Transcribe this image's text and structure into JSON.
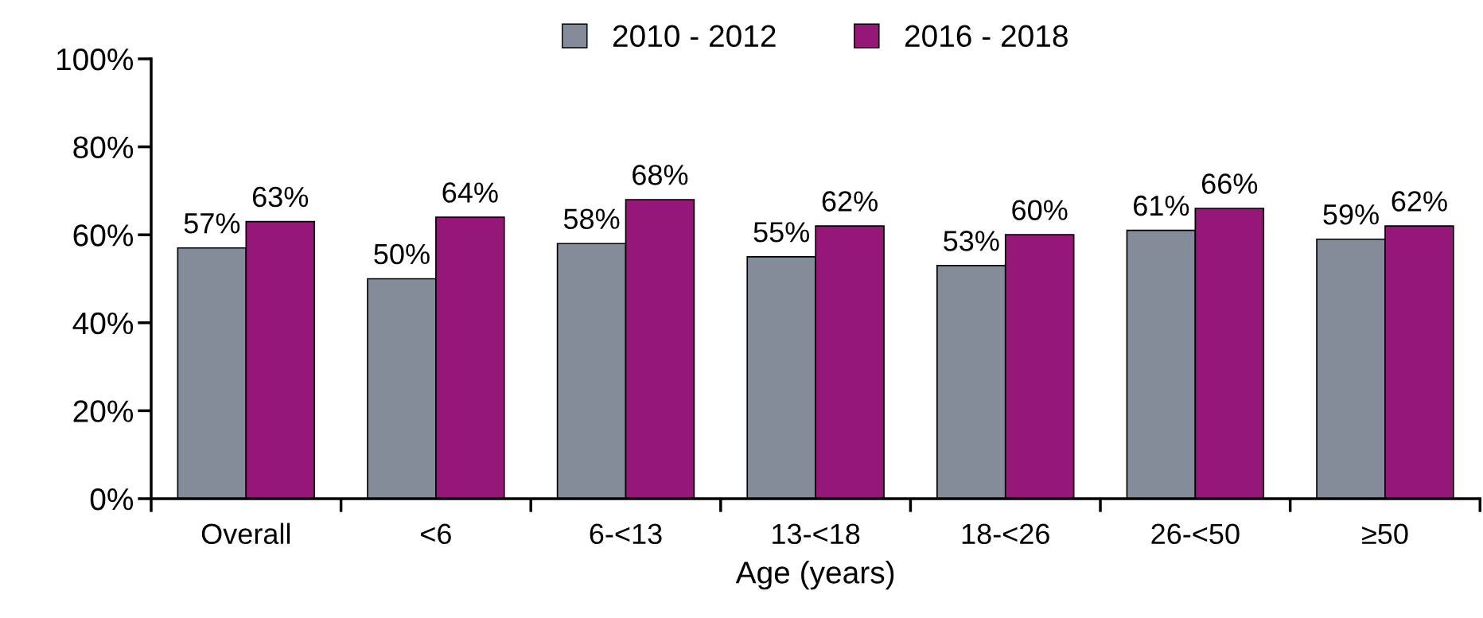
{
  "chart_data": {
    "type": "bar",
    "xlabel": "Age (years)",
    "categories": [
      "Overall",
      "<6",
      "6-<13",
      "13-<18",
      "18-<26",
      "26-<50",
      "≥50"
    ],
    "series": [
      {
        "name": "2010 - 2012",
        "color": "#848c9a",
        "values": [
          57,
          50,
          58,
          55,
          53,
          61,
          59
        ],
        "value_labels": [
          "57%",
          "50%",
          "58%",
          "55%",
          "53%",
          "61%",
          "59%"
        ]
      },
      {
        "name": "2016 - 2018",
        "color": "#951777",
        "values": [
          63,
          64,
          68,
          62,
          60,
          66,
          62
        ],
        "value_labels": [
          "63%",
          "64%",
          "68%",
          "62%",
          "60%",
          "66%",
          "62%"
        ]
      }
    ],
    "ylim": [
      0,
      100
    ],
    "yticks": [
      {
        "value": 0,
        "label": "0%"
      },
      {
        "value": 20,
        "label": "20%"
      },
      {
        "value": 40,
        "label": "40%"
      },
      {
        "value": 60,
        "label": "60%"
      },
      {
        "value": 80,
        "label": "80%"
      },
      {
        "value": 100,
        "label": "100%"
      }
    ],
    "grid": false,
    "legend": "top"
  }
}
